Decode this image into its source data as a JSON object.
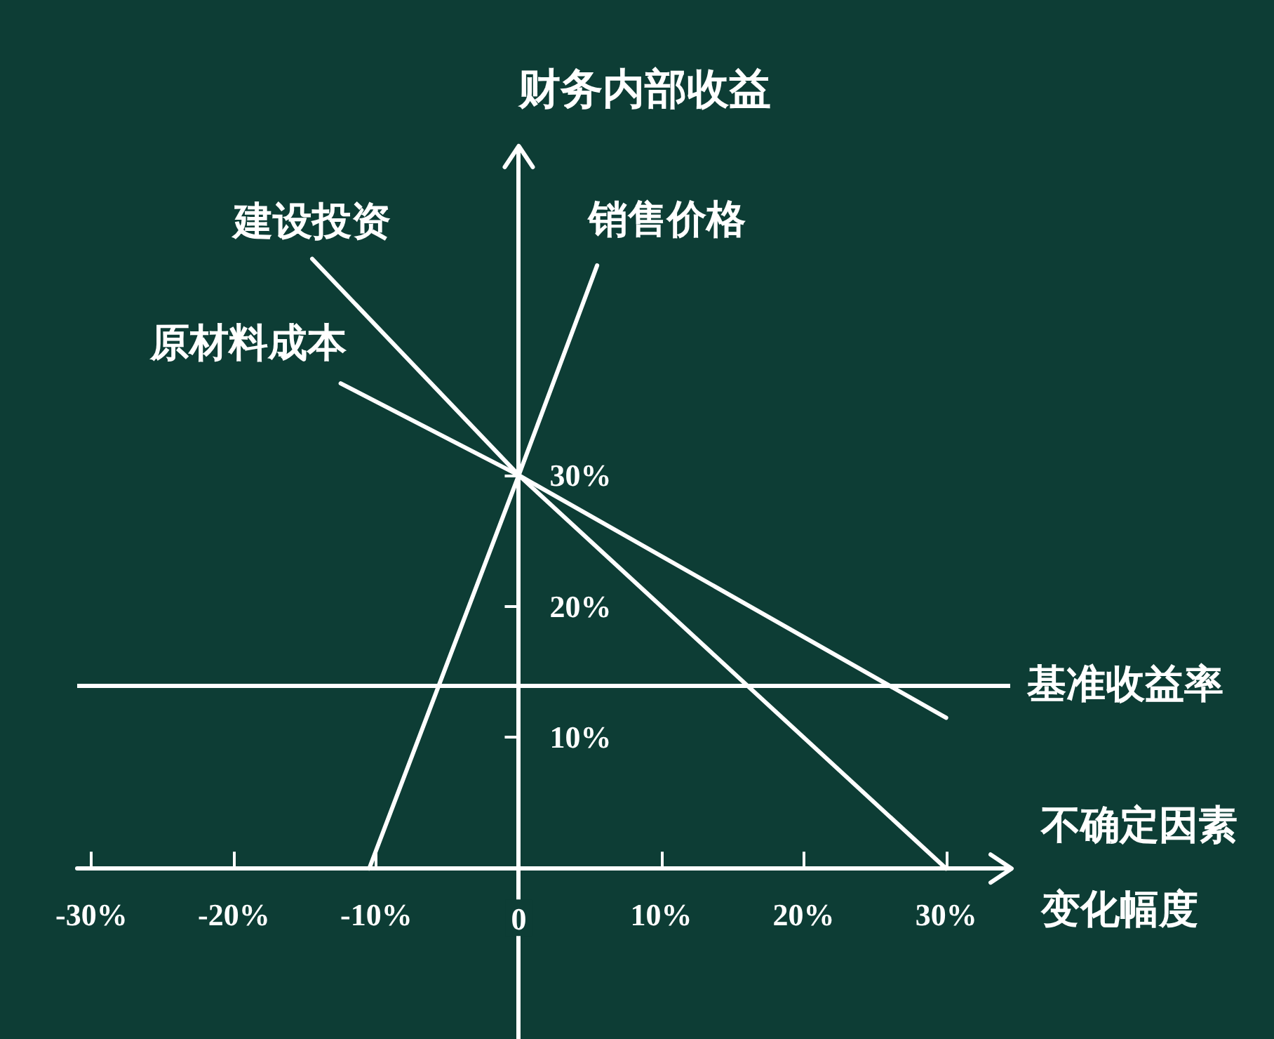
{
  "chart_data": {
    "type": "line",
    "xlabel": "不确定因素变化幅度",
    "ylabel": "财务内部收益",
    "series": [
      {
        "name": "建设投资",
        "color": "#ffffff",
        "x": [
          -14.5,
          0,
          30
        ],
        "values": [
          46.5,
          30,
          0
        ]
      },
      {
        "name": "原材料成本",
        "color": "#ffffff",
        "x": [
          -12.5,
          0,
          30
        ],
        "values": [
          37,
          30,
          11.5
        ]
      },
      {
        "name": "销售价格",
        "color": "#ffffff",
        "x": [
          -10.5,
          0,
          5.5
        ],
        "values": [
          0,
          30,
          46
        ]
      }
    ],
    "xlim": [
      -31,
      34.5
    ],
    "ylim": [
      -13,
      55
    ],
    "xticks": [
      {
        "value": -30,
        "label": "-30%"
      },
      {
        "value": -20,
        "label": "-20%"
      },
      {
        "value": -10,
        "label": "-10%"
      },
      0,
      {
        "value": 10,
        "label": "10%"
      },
      {
        "value": 20,
        "label": "20%"
      },
      {
        "value": 30,
        "label": "30%"
      }
    ],
    "yticks": [
      {
        "value": 10,
        "label": "10%"
      },
      {
        "value": 20,
        "label": "20%"
      },
      {
        "value": 30,
        "label": "30%"
      }
    ],
    "ref_lines": [
      {
        "axis": "y",
        "value": 14,
        "label": "基准收益率",
        "color": "#ffffff"
      }
    ],
    "line_style": "solid"
  }
}
